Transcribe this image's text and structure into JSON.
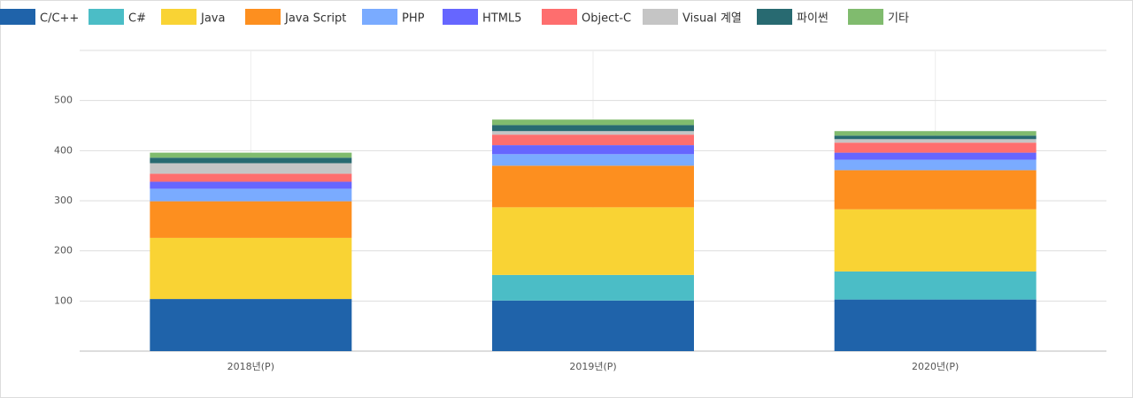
{
  "chart_data": {
    "type": "stacked_bar",
    "categories": [
      "2018년(P)",
      "2019년(P)",
      "2020년(P)"
    ],
    "series": [
      {
        "name": "C/C++",
        "color": "#1f63aa",
        "values": [
          104,
          101,
          103
        ]
      },
      {
        "name": "C#",
        "color": "#4bbdc6",
        "values": [
          0,
          51,
          56
        ]
      },
      {
        "name": "Java",
        "color": "#f9d334",
        "values": [
          122,
          135,
          124
        ]
      },
      {
        "name": "Java Script",
        "color": "#fd8f1f",
        "values": [
          73,
          83,
          78
        ]
      },
      {
        "name": "PHP",
        "color": "#7aabff",
        "values": [
          25,
          23,
          21
        ]
      },
      {
        "name": "HTML5",
        "color": "#6666ff",
        "values": [
          14,
          18,
          14
        ]
      },
      {
        "name": "Object-C",
        "color": "#fe6e6e",
        "values": [
          16,
          21,
          20
        ]
      },
      {
        "name": "Visual 계열",
        "color": "#c5c5c5",
        "values": [
          21,
          7,
          7
        ]
      },
      {
        "name": "파이썬",
        "color": "#286a71",
        "values": [
          11,
          12,
          7
        ]
      },
      {
        "name": "기타",
        "color": "#80bb6e",
        "values": [
          10,
          11,
          9
        ]
      }
    ],
    "ylim": [
      0,
      600
    ],
    "yticks": [
      100,
      200,
      300,
      400,
      500
    ],
    "grid": true
  }
}
